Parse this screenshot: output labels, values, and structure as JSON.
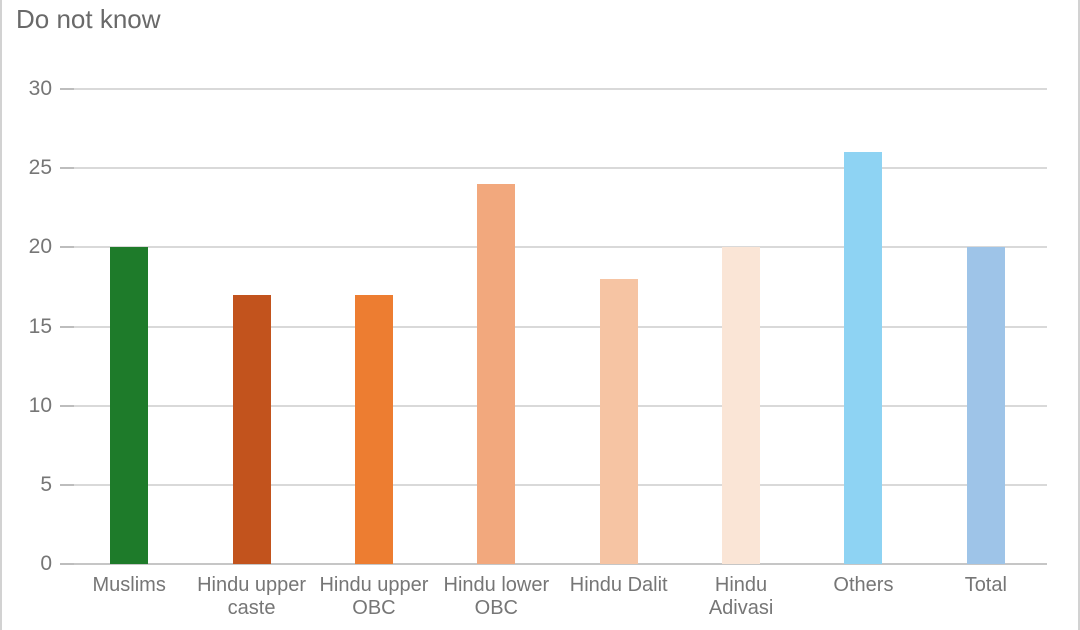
{
  "title": "Do not know",
  "chart_data": {
    "type": "bar",
    "title": "Do not know",
    "categories": [
      "Muslims",
      "Hindu upper caste",
      "Hindu upper OBC",
      "Hindu lower OBC",
      "Hindu Dalit",
      "Hindu Adivasi",
      "Others",
      "Total"
    ],
    "values": [
      20,
      17,
      17,
      24,
      18,
      20,
      26,
      20
    ],
    "bar_colors": [
      "#1e7b2a",
      "#c2531d",
      "#ed7d31",
      "#f2a87d",
      "#f6c4a3",
      "#fae5d6",
      "#8ed3f3",
      "#9ec4e8"
    ],
    "xlabel": "",
    "ylabel": "",
    "ylim": [
      0,
      30
    ],
    "yticks": [
      0,
      5,
      10,
      15,
      20,
      25,
      30
    ],
    "grid": true,
    "legend": false
  },
  "styles": {
    "title_color": "#696969",
    "axis_text_color": "#767676",
    "gridline_color": "#d9d9d9",
    "baseline_color": "#c6c6c6",
    "frame_border_color": "#d2d2d2",
    "background": "#ffffff"
  }
}
